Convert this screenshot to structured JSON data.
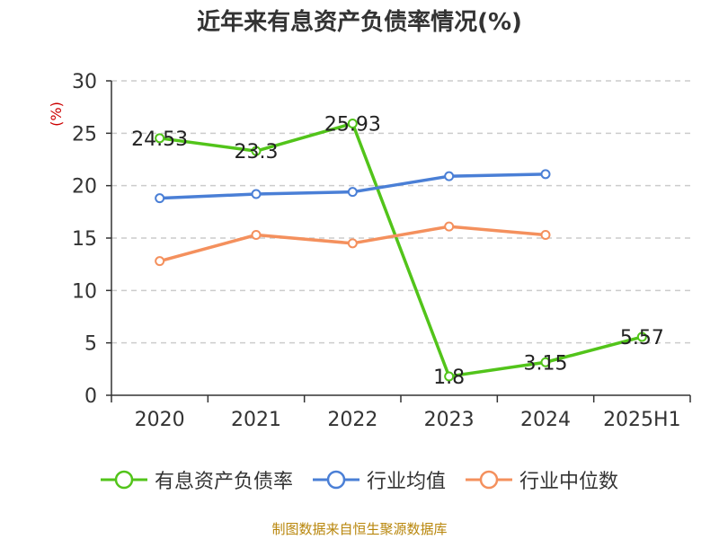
{
  "chart_data": {
    "type": "line",
    "title": "近年来有息资产负债率情况(%)",
    "ylabel": "(%)",
    "categories": [
      "2020",
      "2021",
      "2022",
      "2023",
      "2024",
      "2025H1"
    ],
    "ylim": [
      0,
      30
    ],
    "yticks": [
      0,
      5,
      10,
      15,
      20,
      25,
      30
    ],
    "grid": true,
    "legend_position": "bottom",
    "series": [
      {
        "name": "有息资产负债率",
        "color": "#52c41a",
        "show_labels": true,
        "labels": [
          "24.53",
          "23.3",
          "25.93",
          "1.8",
          "3.15",
          "5.57"
        ],
        "values": [
          24.53,
          23.3,
          25.93,
          1.8,
          3.15,
          5.57
        ]
      },
      {
        "name": "行业均值",
        "color": "#4a7fd6",
        "show_labels": false,
        "values": [
          18.8,
          19.2,
          19.4,
          20.9,
          21.1,
          null
        ]
      },
      {
        "name": "行业中位数",
        "color": "#f4905d",
        "show_labels": false,
        "values": [
          12.8,
          15.3,
          14.5,
          16.1,
          15.3,
          null
        ]
      }
    ]
  },
  "source": "制图数据来自恒生聚源数据库"
}
